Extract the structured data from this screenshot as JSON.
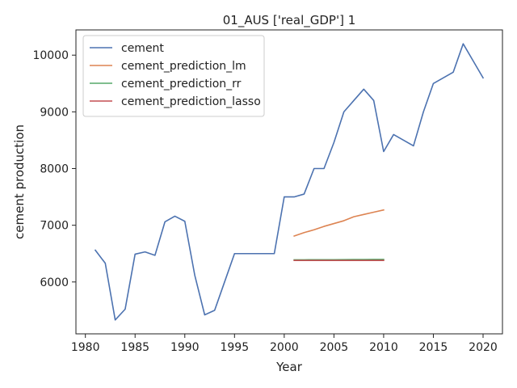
{
  "chart_data": {
    "type": "line",
    "title": "01_AUS ['real_GDP'] 1",
    "xlabel": "Year",
    "ylabel": "cement production",
    "xlim": [
      1979.05,
      2021.95
    ],
    "ylim": [
      5085,
      10445
    ],
    "xticks": [
      1980,
      1985,
      1990,
      1995,
      2000,
      2005,
      2010,
      2015,
      2020
    ],
    "xtick_labels": [
      "1980",
      "1985",
      "1990",
      "1995",
      "2000",
      "2005",
      "2010",
      "2015",
      "2020"
    ],
    "yticks": [
      6000,
      7000,
      8000,
      9000,
      10000
    ],
    "ytick_labels": [
      "6000",
      "7000",
      "8000",
      "9000",
      "10000"
    ],
    "grid": false,
    "legend_position": "top-left",
    "series": [
      {
        "name": "cement",
        "color": "#4c72b0",
        "x": [
          1981,
          1982,
          1983,
          1984,
          1985,
          1986,
          1987,
          1988,
          1989,
          1990,
          1991,
          1992,
          1993,
          1994,
          1995,
          1996,
          1997,
          1998,
          1999,
          2000,
          2001,
          2002,
          2003,
          2004,
          2005,
          2006,
          2007,
          2008,
          2009,
          2010,
          2011,
          2012,
          2013,
          2014,
          2015,
          2016,
          2017,
          2018,
          2019,
          2020
        ],
        "y": [
          6560,
          6330,
          5330,
          5520,
          6490,
          6530,
          6470,
          7060,
          7160,
          7070,
          6120,
          5420,
          5500,
          6000,
          6500,
          6500,
          6500,
          6500,
          6500,
          7500,
          7500,
          7550,
          8000,
          8000,
          8460,
          9000,
          9200,
          9400,
          9200,
          8300,
          8600,
          8500,
          8400,
          9000,
          9500,
          9600,
          9700,
          10200,
          9900,
          9600
        ]
      },
      {
        "name": "cement_prediction_lm",
        "color": "#dd8452",
        "x": [
          2001,
          2002,
          2003,
          2004,
          2005,
          2006,
          2007,
          2008,
          2009,
          2010
        ],
        "y": [
          6810,
          6870,
          6920,
          6980,
          7030,
          7080,
          7150,
          7190,
          7230,
          7270
        ]
      },
      {
        "name": "cement_prediction_rr",
        "color": "#55a868",
        "x": [
          2001,
          2002,
          2003,
          2004,
          2005,
          2006,
          2007,
          2008,
          2009,
          2010
        ],
        "y": [
          6390,
          6391,
          6392,
          6392,
          6393,
          6394,
          6395,
          6396,
          6397,
          6398
        ]
      },
      {
        "name": "cement_prediction_lasso",
        "color": "#c44e52",
        "x": [
          2001,
          2002,
          2003,
          2004,
          2005,
          2006,
          2007,
          2008,
          2009,
          2010
        ],
        "y": [
          6380,
          6380,
          6380,
          6380,
          6380,
          6380,
          6380,
          6380,
          6380,
          6380
        ]
      }
    ]
  }
}
